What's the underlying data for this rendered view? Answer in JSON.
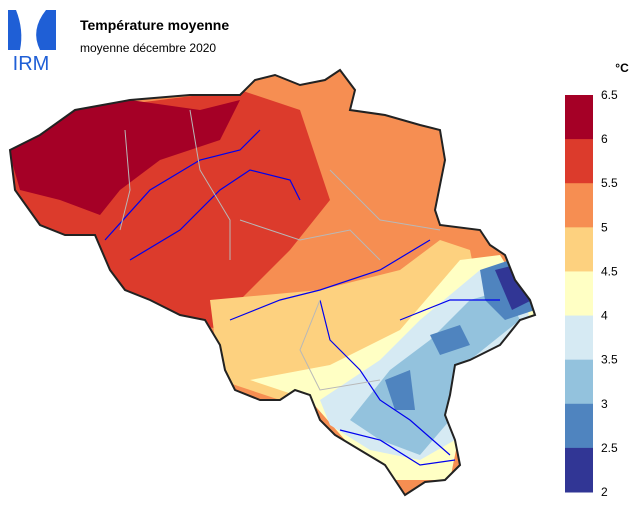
{
  "header": {
    "logo": "IRM",
    "title": "Température moyenne",
    "subtitle": "moyenne décembre 2020"
  },
  "legend": {
    "unit": "°C",
    "ticks": [
      6.5,
      6,
      5.5,
      5,
      4.5,
      4,
      3.5,
      3,
      2.5,
      2
    ],
    "colors": [
      "#a50026",
      "#dc3b2c",
      "#f68e52",
      "#fdd17f",
      "#ffffc4",
      "#d6eaf3",
      "#93c2dd",
      "#4f84bf",
      "#313695"
    ]
  }
}
